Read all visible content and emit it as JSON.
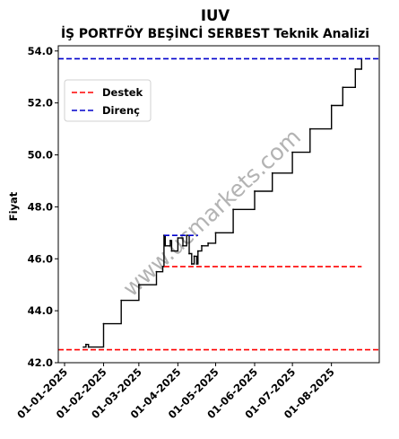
{
  "chart_data": {
    "type": "line",
    "title": "IUV",
    "subtitle": "İŞ PORTFÖY BEŞİNCİ SERBEST Teknik Analizi",
    "xlabel": "",
    "ylabel": "Fiyat",
    "ylim": [
      42.0,
      54.2
    ],
    "yticks": [
      42.0,
      44.0,
      46.0,
      48.0,
      50.0,
      52.0,
      54.0
    ],
    "ytick_labels": [
      "42.0",
      "44.0",
      "46.0",
      "48.0",
      "50.0",
      "52.0",
      "54.0"
    ],
    "xlim": [
      "2024-12-27",
      "2025-09-08"
    ],
    "xtick_labels": [
      "01-01-2025",
      "01-02-2025",
      "01-03-2025",
      "01-04-2025",
      "01-05-2025",
      "01-06-2025",
      "01-07-2025",
      "01-08-2025"
    ],
    "xtick_dates": [
      "2025-01-01",
      "2025-02-01",
      "2025-03-01",
      "2025-04-01",
      "2025-05-01",
      "2025-06-01",
      "2025-07-01",
      "2025-08-01"
    ],
    "grid": false,
    "legend": {
      "placement": "upper-left",
      "entries": [
        "Destek",
        "Direnç"
      ]
    },
    "series": [
      {
        "color": "#000000",
        "x": [
          "2025-01-16",
          "2025-01-18",
          "2025-01-20",
          "2025-02-01",
          "2025-02-15",
          "2025-03-01",
          "2025-03-15",
          "2025-03-20",
          "2025-03-21",
          "2025-03-22",
          "2025-03-26",
          "2025-03-27",
          "2025-04-01",
          "2025-04-05",
          "2025-04-08",
          "2025-04-10",
          "2025-04-12",
          "2025-04-14",
          "2025-04-16",
          "2025-04-17",
          "2025-04-20",
          "2025-04-25",
          "2025-05-01",
          "2025-05-15",
          "2025-06-01",
          "2025-06-15",
          "2025-07-01",
          "2025-07-15",
          "2025-08-01",
          "2025-08-10",
          "2025-08-20",
          "2025-08-25"
        ],
        "values": [
          42.6,
          42.7,
          42.6,
          43.5,
          44.4,
          45.0,
          45.5,
          45.7,
          46.9,
          46.5,
          46.7,
          46.3,
          46.8,
          46.5,
          46.9,
          46.2,
          45.8,
          46.1,
          45.8,
          46.3,
          46.5,
          46.6,
          47.0,
          47.9,
          48.6,
          49.3,
          50.1,
          51.0,
          51.9,
          52.6,
          53.3,
          53.7
        ]
      }
    ],
    "hlines": [
      {
        "name": "Destek",
        "color": "#ff0000",
        "style": "dashed",
        "y": 42.5,
        "x_range": [
          "2024-12-27",
          "2025-09-08"
        ]
      },
      {
        "name": "Destek",
        "color": "#ff0000",
        "style": "dashed",
        "y": 45.7,
        "x_range": [
          "2025-03-21",
          "2025-08-25"
        ]
      },
      {
        "name": "Direnç",
        "color": "#0000cc",
        "style": "dashed",
        "y": 53.7,
        "x_range": [
          "2024-12-27",
          "2025-09-08"
        ]
      },
      {
        "name": "Direnç",
        "color": "#0000cc",
        "style": "dashed",
        "y": 46.9,
        "x_range": [
          "2025-03-21",
          "2025-04-17"
        ]
      }
    ],
    "watermark": "www.ucmarkets.com"
  }
}
